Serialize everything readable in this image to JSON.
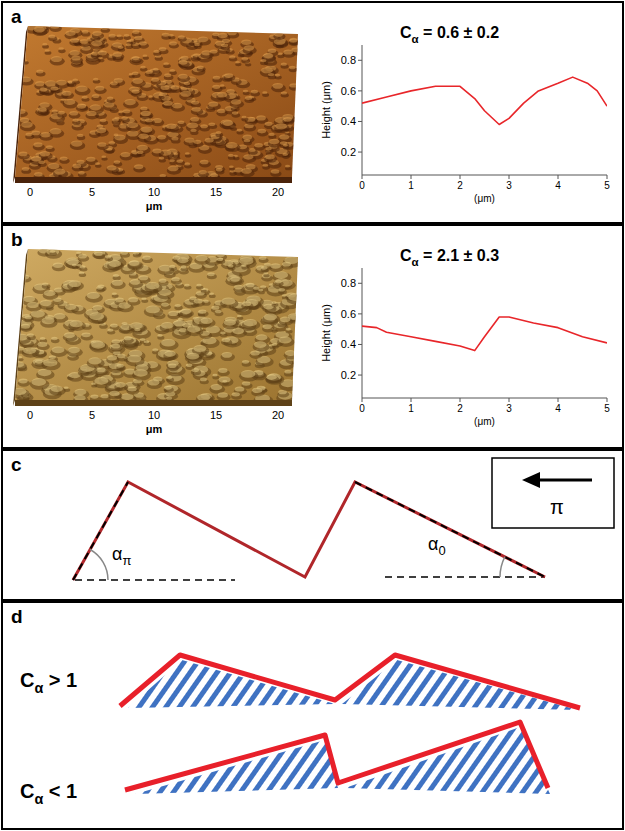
{
  "panels": [
    {
      "letter": "a",
      "image_axis": {
        "ticks": [
          0,
          5,
          10,
          15,
          20
        ],
        "label": "μm"
      }
    },
    {
      "letter": "b",
      "image_axis": {
        "ticks": [
          0,
          5,
          10,
          15,
          20
        ],
        "label": "μm"
      }
    },
    {
      "letter": "c",
      "angle_labels": [
        "απ",
        "α0"
      ],
      "arrow_label": "π"
    },
    {
      "letter": "d",
      "cases": [
        "Cα > 1",
        "Cα < 1"
      ]
    }
  ],
  "chart_data": [
    {
      "type": "line",
      "title": "Cα = 0.6 ± 0.2",
      "xlabel": "(μm)",
      "ylabel": "Height (μm)",
      "x": [
        0,
        0.5,
        1,
        1.5,
        2,
        2.3,
        2.5,
        2.8,
        3,
        3.3,
        3.6,
        4,
        4.3,
        4.6,
        4.8,
        5
      ],
      "values": [
        0.52,
        0.56,
        0.6,
        0.63,
        0.63,
        0.55,
        0.47,
        0.38,
        0.42,
        0.52,
        0.6,
        0.65,
        0.69,
        0.65,
        0.6,
        0.5
      ],
      "color": "#e8262a",
      "xlim": [
        0,
        5
      ],
      "xticks": [
        0,
        1,
        2,
        3,
        4,
        5
      ],
      "ylim": [
        0.05,
        0.9
      ],
      "yticks": [
        0.2,
        0.4,
        0.6,
        0.8
      ]
    },
    {
      "type": "line",
      "title": "Cα = 2.1 ± 0.3",
      "xlabel": "(μm)",
      "ylabel": "Height (μm)",
      "x": [
        0,
        0.3,
        0.5,
        1,
        1.5,
        2,
        2.3,
        2.5,
        2.8,
        3,
        3.5,
        4,
        4.5,
        5
      ],
      "values": [
        0.52,
        0.51,
        0.48,
        0.45,
        0.42,
        0.39,
        0.36,
        0.45,
        0.58,
        0.58,
        0.54,
        0.51,
        0.45,
        0.41
      ],
      "color": "#e8262a",
      "xlim": [
        0,
        5
      ],
      "xticks": [
        0,
        1,
        2,
        3,
        4,
        5
      ],
      "ylim": [
        0.05,
        0.9
      ],
      "yticks": [
        0.2,
        0.4,
        0.6,
        0.8
      ]
    }
  ]
}
